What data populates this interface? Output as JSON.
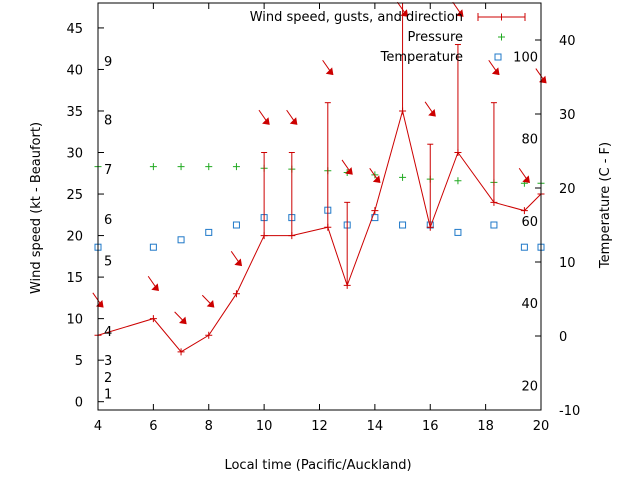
{
  "chart_data": {
    "type": "line",
    "xlabel": "Local time (Pacific/Auckland)",
    "ylabel": "Wind speed (kt - Beaufort)",
    "y2label": "Temperature (C - F)",
    "xlim": [
      4,
      20
    ],
    "ylim": [
      -1,
      48
    ],
    "y2lim": [
      -10,
      45
    ],
    "x_ticks": [
      "4",
      "6",
      "8",
      "10",
      "12",
      "14",
      "16",
      "18",
      "20"
    ],
    "y_ticks": [
      "0",
      "5",
      "10",
      "15",
      "20",
      "25",
      "30",
      "35",
      "40",
      "45"
    ],
    "y2_ticks": [
      "-10",
      "0",
      "10",
      "20",
      "30",
      "40"
    ],
    "beaufort_labels": [
      "1",
      "2",
      "3",
      "4",
      "5",
      "6",
      "7",
      "8",
      "9"
    ],
    "beaufort_values": [
      1,
      3,
      5,
      8.5,
      17,
      22,
      28,
      34,
      41
    ],
    "fahrenheit_labels": [
      "20",
      "40",
      "60",
      "80",
      "100"
    ],
    "fahrenheit_values": [
      20,
      40,
      60,
      80,
      100
    ],
    "legend": {
      "wind": "Wind speed, gusts, and direction",
      "pressure": "Pressure",
      "temperature": "Temperature"
    },
    "colors": {
      "wind": "#cc0000",
      "pressure": "#22aa22",
      "temperature": "#1f78c8",
      "axis": "#000000"
    },
    "wind": {
      "x": [
        4,
        6,
        7,
        8,
        9,
        10,
        11,
        12.3,
        13,
        14,
        15,
        16,
        17,
        18.3,
        19.4,
        20
      ],
      "speed": [
        8,
        10,
        6,
        8,
        13,
        20,
        20,
        21,
        14,
        23,
        35,
        21,
        30,
        24,
        23,
        25
      ],
      "gust": [
        null,
        null,
        null,
        null,
        null,
        30,
        30,
        36,
        24,
        null,
        48,
        31,
        43,
        36,
        null,
        null
      ],
      "dir_x": [
        4,
        6,
        7,
        8,
        9,
        10,
        11,
        12.3,
        13,
        14,
        15,
        16,
        17,
        18.3,
        19.4,
        20
      ],
      "dir_y": [
        12,
        14,
        10,
        12,
        17,
        34,
        34,
        40,
        28,
        27,
        47,
        35,
        47,
        40,
        27,
        39
      ],
      "dir_deg": [
        135,
        135,
        100,
        100,
        135,
        135,
        135,
        135,
        135,
        135,
        135,
        135,
        135,
        135,
        135,
        135
      ]
    },
    "pressure": {
      "x": [
        4,
        6,
        7,
        8,
        9,
        10,
        11,
        12.3,
        13,
        14,
        15,
        16,
        17,
        18.3,
        19.4,
        20
      ],
      "y": [
        28.3,
        28.3,
        28.3,
        28.3,
        28.3,
        28.1,
        28,
        27.8,
        27.6,
        27.3,
        27,
        26.8,
        26.6,
        26.4,
        26.3,
        26.3
      ]
    },
    "temperature": {
      "x": [
        4,
        6,
        7,
        8,
        9,
        10,
        11,
        12.3,
        13,
        14,
        15,
        16,
        17,
        18.3,
        19.4,
        20
      ],
      "y": [
        12,
        12,
        13,
        14,
        15,
        16,
        16,
        17,
        15,
        16,
        15,
        15,
        14,
        15,
        12,
        12
      ]
    }
  }
}
